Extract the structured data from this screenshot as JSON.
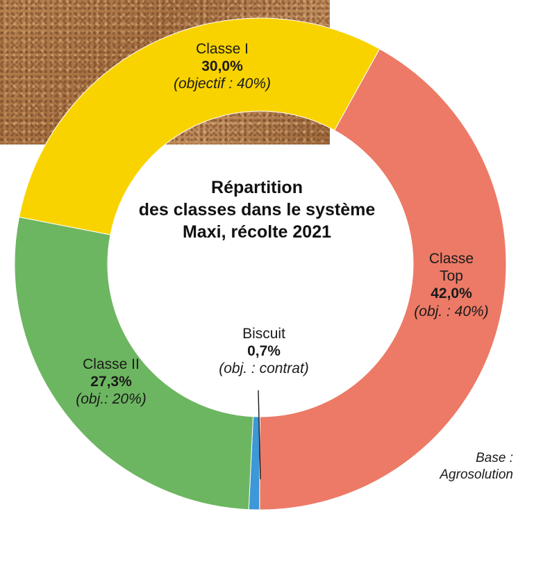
{
  "chart_data": {
    "type": "pie",
    "title_lines": [
      "Répartition",
      "des classes dans le système",
      "Maxi, récolte 2021"
    ],
    "slices": [
      {
        "name": "Classe Top",
        "name_lines": [
          "Classe",
          "Top"
        ],
        "value": 42.0,
        "value_label": "42,0%",
        "target_label": "(obj. : 40%)",
        "color": "#ec7a66"
      },
      {
        "name": "Biscuit",
        "name_lines": [
          "Biscuit"
        ],
        "value": 0.7,
        "value_label": "0,7%",
        "target_label": "(obj. : contrat)",
        "color": "#3e97d6"
      },
      {
        "name": "Classe II",
        "name_lines": [
          "Classe II"
        ],
        "value": 27.3,
        "value_label": "27,3%",
        "target_label": "(obj.: 20%)",
        "color": "#6db661"
      },
      {
        "name": "Classe I",
        "name_lines": [
          "Classe I"
        ],
        "value": 30.0,
        "value_label": "30,0%",
        "target_label": "(objectif : 40%)",
        "color": "#f9d300"
      }
    ],
    "source_lines": [
      "Base :",
      "Agrosolution"
    ]
  }
}
